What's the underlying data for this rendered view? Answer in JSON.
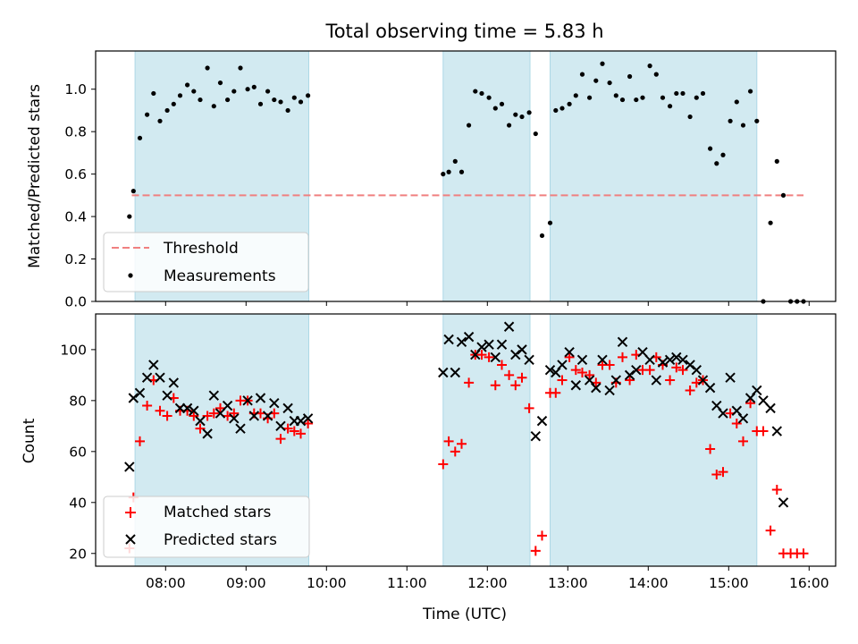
{
  "chart_data": {
    "type": "scatter",
    "title": "Total observing time = 5.83 h",
    "xlabel": "Time (UTC)",
    "x_unit": "hours UTC",
    "xlim": [
      7.13,
      16.33
    ],
    "x_ticks": [
      8,
      9,
      10,
      11,
      12,
      13,
      14,
      15,
      16
    ],
    "x_tick_labels": [
      "08:00",
      "09:00",
      "10:00",
      "11:00",
      "12:00",
      "13:00",
      "14:00",
      "15:00",
      "16:00"
    ],
    "observing_windows": [
      [
        7.62,
        9.78
      ],
      [
        11.45,
        12.53
      ],
      [
        12.78,
        15.35
      ]
    ],
    "window_color": "#add8e6",
    "panels": [
      {
        "ylabel": "Matched/Predicted stars",
        "ylim": [
          0,
          1.18
        ],
        "y_ticks": [
          0.0,
          0.2,
          0.4,
          0.6,
          0.8,
          1.0
        ],
        "y_tick_labels": [
          "0.0",
          "0.2",
          "0.4",
          "0.6",
          "0.8",
          "1.0"
        ],
        "legend": {
          "placement": "lower left",
          "entries": [
            "Threshold",
            "Measurements"
          ]
        },
        "series": [
          {
            "name": "Threshold",
            "kind": "dashed-line",
            "color": "#f08080",
            "x": [
              7.58,
              15.93
            ],
            "y": [
              0.5,
              0.5
            ]
          },
          {
            "name": "Measurements",
            "kind": "dot",
            "color": "#000000",
            "x": [
              7.55,
              7.6,
              7.68,
              7.77,
              7.85,
              7.93,
              8.02,
              8.1,
              8.18,
              8.27,
              8.35,
              8.43,
              8.52,
              8.6,
              8.68,
              8.77,
              8.85,
              8.93,
              9.02,
              9.1,
              9.18,
              9.27,
              9.35,
              9.43,
              9.52,
              9.6,
              9.68,
              9.77,
              11.45,
              11.52,
              11.6,
              11.68,
              11.77,
              11.85,
              11.93,
              12.02,
              12.1,
              12.18,
              12.27,
              12.35,
              12.43,
              12.52,
              12.6,
              12.68,
              12.78,
              12.85,
              12.93,
              13.02,
              13.1,
              13.18,
              13.27,
              13.35,
              13.43,
              13.52,
              13.6,
              13.68,
              13.77,
              13.85,
              13.93,
              14.02,
              14.1,
              14.18,
              14.27,
              14.35,
              14.43,
              14.52,
              14.6,
              14.68,
              14.77,
              14.85,
              14.93,
              15.02,
              15.1,
              15.18,
              15.27,
              15.35,
              15.43,
              15.52,
              15.6,
              15.68,
              15.77,
              15.85,
              15.93
            ],
            "y": [
              0.4,
              0.52,
              0.77,
              0.88,
              0.98,
              0.85,
              0.9,
              0.93,
              0.97,
              1.02,
              0.99,
              0.95,
              1.1,
              0.92,
              1.03,
              0.95,
              0.99,
              1.1,
              1.0,
              1.01,
              0.93,
              0.99,
              0.95,
              0.94,
              0.9,
              0.96,
              0.94,
              0.97,
              0.6,
              0.61,
              0.66,
              0.61,
              0.83,
              0.99,
              0.98,
              0.96,
              0.91,
              0.93,
              0.83,
              0.88,
              0.87,
              0.89,
              0.79,
              0.31,
              0.37,
              0.9,
              0.91,
              0.93,
              0.97,
              1.07,
              0.96,
              1.04,
              1.12,
              1.03,
              0.97,
              0.95,
              1.06,
              0.95,
              0.96,
              1.11,
              1.07,
              0.96,
              0.92,
              0.98,
              0.98,
              0.87,
              0.96,
              0.98,
              0.72,
              0.65,
              0.69,
              0.85,
              0.94,
              0.83,
              0.99,
              0.85,
              0.0,
              0.37,
              0.66,
              0.5,
              0.0,
              0.0,
              0.0
            ]
          }
        ]
      },
      {
        "ylabel": "Count",
        "ylim": [
          15,
          114
        ],
        "y_ticks": [
          20,
          40,
          60,
          80,
          100
        ],
        "y_tick_labels": [
          "20",
          "40",
          "60",
          "80",
          "100"
        ],
        "legend": {
          "placement": "lower left",
          "entries": [
            "Matched stars",
            "Predicted stars"
          ]
        },
        "series": [
          {
            "name": "Matched stars",
            "kind": "plus",
            "color": "#ff0000",
            "x": [
              7.55,
              7.6,
              7.68,
              7.77,
              7.85,
              7.93,
              8.02,
              8.1,
              8.18,
              8.27,
              8.35,
              8.43,
              8.52,
              8.6,
              8.68,
              8.77,
              8.85,
              8.93,
              9.02,
              9.1,
              9.18,
              9.27,
              9.35,
              9.43,
              9.52,
              9.6,
              9.68,
              9.77,
              11.45,
              11.52,
              11.6,
              11.68,
              11.77,
              11.85,
              11.93,
              12.02,
              12.1,
              12.18,
              12.27,
              12.35,
              12.43,
              12.52,
              12.6,
              12.68,
              12.78,
              12.85,
              12.93,
              13.02,
              13.1,
              13.18,
              13.27,
              13.35,
              13.43,
              13.52,
              13.6,
              13.68,
              13.77,
              13.85,
              13.93,
              14.02,
              14.1,
              14.18,
              14.27,
              14.35,
              14.43,
              14.52,
              14.6,
              14.68,
              14.77,
              14.85,
              14.93,
              15.02,
              15.1,
              15.18,
              15.27,
              15.35,
              15.43,
              15.52,
              15.6,
              15.68,
              15.77,
              15.85,
              15.93
            ],
            "y": [
              22,
              42,
              64,
              78,
              88,
              76,
              74,
              81,
              76,
              76,
              74,
              69,
              74,
              75,
              77,
              74,
              75,
              80,
              80,
              75,
              75,
              73,
              75,
              65,
              69,
              68,
              67,
              71,
              55,
              64,
              60,
              63,
              87,
              98,
              98,
              97,
              86,
              94,
              90,
              86,
              89,
              77,
              21,
              27,
              83,
              83,
              88,
              97,
              92,
              91,
              90,
              87,
              94,
              94,
              87,
              97,
              88,
              98,
              92,
              92,
              97,
              94,
              88,
              93,
              92,
              84,
              87,
              88,
              61,
              51,
              52,
              75,
              71,
              64,
              79,
              68,
              68,
              29,
              45,
              20,
              20,
              20,
              20
            ]
          },
          {
            "name": "Predicted stars",
            "kind": "x",
            "color": "#000000",
            "x": [
              7.55,
              7.6,
              7.68,
              7.77,
              7.85,
              7.93,
              8.02,
              8.1,
              8.18,
              8.27,
              8.35,
              8.43,
              8.52,
              8.6,
              8.68,
              8.77,
              8.85,
              8.93,
              9.02,
              9.1,
              9.18,
              9.27,
              9.35,
              9.43,
              9.52,
              9.6,
              9.68,
              9.77,
              11.45,
              11.52,
              11.6,
              11.68,
              11.77,
              11.85,
              11.93,
              12.02,
              12.1,
              12.18,
              12.27,
              12.35,
              12.43,
              12.52,
              12.6,
              12.68,
              12.78,
              12.85,
              12.93,
              13.02,
              13.1,
              13.18,
              13.27,
              13.35,
              13.43,
              13.52,
              13.6,
              13.68,
              13.77,
              13.85,
              13.93,
              14.02,
              14.1,
              14.18,
              14.27,
              14.35,
              14.43,
              14.52,
              14.6,
              14.68,
              14.77,
              14.85,
              14.93,
              15.02,
              15.1,
              15.18,
              15.27,
              15.35,
              15.43,
              15.52,
              15.6,
              15.68
            ],
            "y": [
              54,
              81,
              83,
              89,
              94,
              89,
              82,
              87,
              77,
              77,
              76,
              72,
              67,
              82,
              75,
              78,
              73,
              69,
              80,
              74,
              81,
              74,
              79,
              70,
              77,
              72,
              72,
              73,
              91,
              104,
              91,
              103,
              105,
              98,
              101,
              102,
              97,
              102,
              109,
              98,
              100,
              96,
              66,
              72,
              92,
              91,
              94,
              99,
              86,
              96,
              88,
              85,
              96,
              84,
              88,
              103,
              90,
              92,
              99,
              96,
              88,
              95,
              96,
              97,
              96,
              94,
              92,
              88,
              85,
              78,
              75,
              89,
              76,
              73,
              81,
              84,
              80,
              77,
              68,
              40
            ]
          }
        ]
      }
    ]
  }
}
